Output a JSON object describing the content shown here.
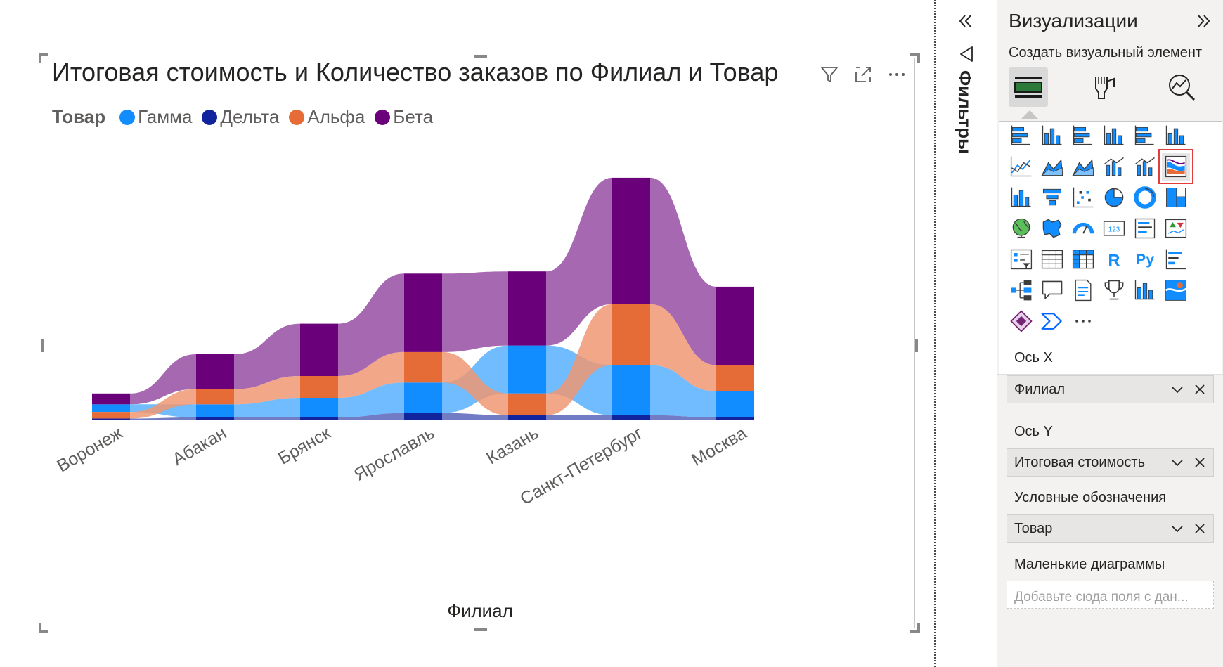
{
  "visual": {
    "title": "Итоговая стоимость и Количество заказов по Филиал и Товар",
    "legend_title": "Товар",
    "legend": [
      {
        "label": "Гамма",
        "color": "#118DFF"
      },
      {
        "label": "Дельта",
        "color": "#12239E"
      },
      {
        "label": "Альфа",
        "color": "#E66C37"
      },
      {
        "label": "Бета",
        "color": "#6B007B"
      }
    ],
    "header_icons": [
      "filter-icon",
      "focus-mode-icon",
      "more-options-icon"
    ]
  },
  "chart_data": {
    "type": "ribbon",
    "xlabel": "Филиал",
    "categories": [
      "Воронеж",
      "Абакан",
      "Брянск",
      "Ярославль",
      "Казань",
      "Санкт-Петербург",
      "Москва"
    ],
    "stack_order_bottom_to_top": "by value per category",
    "series": [
      {
        "name": "Гамма",
        "color": "#118DFF",
        "values": [
          3.5,
          6,
          9,
          14,
          22,
          23,
          12
        ]
      },
      {
        "name": "Дельта",
        "color": "#12239E",
        "values": [
          0.5,
          1,
          1,
          3,
          2,
          2,
          1
        ]
      },
      {
        "name": "Альфа",
        "color": "#E66C37",
        "values": [
          3,
          7,
          10,
          14,
          10,
          28,
          12
        ]
      },
      {
        "name": "Бета",
        "color": "#6B007B",
        "values": [
          5,
          16,
          24,
          36,
          34,
          58,
          36
        ]
      }
    ]
  },
  "filters_pane": {
    "label": "Фильтры"
  },
  "viz_pane": {
    "title": "Визуализации",
    "subtitle": "Создать визуальный элемент",
    "tabs": [
      "build-visual-icon",
      "format-visual-icon",
      "analytics-icon"
    ],
    "more_label": "···",
    "fields": [
      {
        "section": "Ось X",
        "value": "Филиал"
      },
      {
        "section": "Ось Y",
        "value": "Итоговая стоимость"
      },
      {
        "section": "Условные обозначения",
        "value": "Товар"
      }
    ],
    "small_multiples": {
      "section": "Маленькие диаграммы",
      "placeholder": "Добавьте сюда поля с дан..."
    },
    "selected_visual": "ribbon-chart",
    "colors": {
      "accent": "#118DFF",
      "selected_outline": "#E23C3C"
    }
  }
}
